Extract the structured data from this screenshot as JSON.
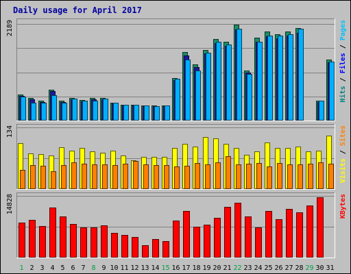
{
  "chart_data": {
    "type": "bar",
    "title": "Daily usage for April 2017",
    "days": [
      "1",
      "2",
      "3",
      "4",
      "5",
      "6",
      "7",
      "8",
      "9",
      "10",
      "11",
      "12",
      "13",
      "14",
      "15",
      "16",
      "17",
      "18",
      "19",
      "20",
      "21",
      "22",
      "23",
      "24",
      "25",
      "26",
      "27",
      "28",
      "29",
      "30",
      "31"
    ],
    "weekend_days": [
      1,
      8,
      15,
      22,
      29
    ],
    "panels": [
      {
        "id": "hits-files-pages",
        "max_label": "2189",
        "legend": [
          "Pages",
          "Files",
          "Hits"
        ],
        "legend_colors": [
          "#00c0ff",
          "#0000ff",
          "#008080"
        ],
        "ymax": 2189,
        "series": [
          {
            "name": "Hits",
            "color": "#1e8c66",
            "values": [
              588,
              509,
              440,
              696,
              440,
              509,
              457,
              509,
              509,
              405,
              362,
              362,
              345,
              335,
              345,
              962,
              1539,
              1268,
              1583,
              1841,
              1773,
              2152,
              1129,
              1868,
              1997,
              1944,
              2005,
              2083,
              0,
              440,
              1375
            ]
          },
          {
            "name": "Files",
            "color": "#1a1aa0",
            "values": [
              559,
              483,
              418,
              661,
              418,
              483,
              434,
              483,
              483,
              385,
              344,
              344,
              328,
              318,
              328,
              914,
              1462,
              1205,
              1504,
              1749,
              1684,
              2044,
              1073,
              1775,
              1897,
              1847,
              1905,
              1979,
              0,
              418,
              1306
            ]
          },
          {
            "name": "Pages",
            "color": "#00b0ff",
            "values": [
              544,
              405,
              405,
              569,
              405,
              495,
              440,
              440,
              495,
              405,
              361,
              361,
              345,
              327,
              345,
              939,
              1375,
              1129,
              1519,
              1772,
              1712,
              2063,
              1047,
              1772,
              1912,
              1912,
              1945,
              2063,
              0,
              440,
              1325
            ]
          }
        ]
      },
      {
        "id": "visits-sites",
        "max_label": "134",
        "legend": [
          "Sites",
          "Visits"
        ],
        "legend_colors": [
          "#ff8000",
          "#ffff00"
        ],
        "ymax": 134,
        "series": [
          {
            "name": "Visits",
            "color": "#ffff00",
            "values": [
              102,
              79,
              77,
              75,
              93,
              85,
              91,
              84,
              81,
              86,
              75,
              64,
              71,
              71,
              71,
              92,
              100,
              94,
              116,
              112,
              100,
              92,
              76,
              84,
              103,
              92,
              91,
              95,
              83,
              86,
              119
            ]
          },
          {
            "name": "Sites",
            "color": "#ff8000",
            "values": [
              42,
              54,
              52,
              40,
              54,
              59,
              57,
              55,
              55,
              54,
              57,
              62,
              55,
              53,
              53,
              50,
              52,
              58,
              55,
              60,
              73,
              55,
              57,
              58,
              51,
              58,
              55,
              55,
              56,
              60,
              57
            ]
          }
        ]
      },
      {
        "id": "kbytes",
        "max_label": "14828",
        "legend": [
          "KBytes"
        ],
        "legend_colors": [
          "#ff0000"
        ],
        "ymax": 14828,
        "series": [
          {
            "name": "KBytes",
            "color": "#ff0000",
            "values": [
              8610,
              9330,
              7770,
              12240,
              10140,
              8340,
              7440,
              7440,
              7890,
              6060,
              5640,
              5070,
              2970,
              4620,
              4020,
              9120,
              11490,
              7500,
              8130,
              9780,
              12450,
              13560,
              10050,
              7410,
              11490,
              9480,
              11910,
              11160,
              12870,
              14828,
              0
            ]
          }
        ]
      }
    ]
  }
}
